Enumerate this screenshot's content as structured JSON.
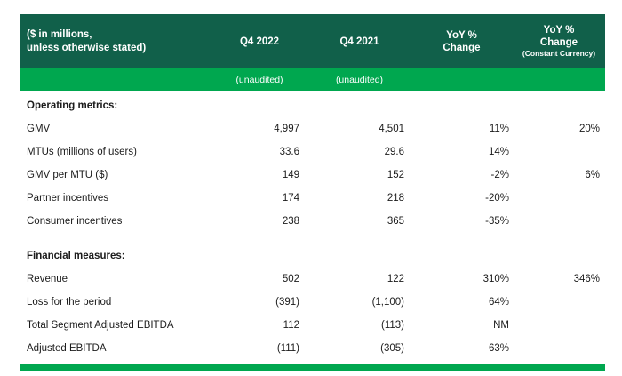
{
  "colors": {
    "header_bg": "#11604A",
    "accent_green": "#00A74F",
    "header_text": "#ffffff",
    "body_text": "#1b1b1b"
  },
  "table": {
    "header": {
      "label_line1": "($ in millions,",
      "label_line2": "unless otherwise stated)",
      "col_q4_2022": "Q4 2022",
      "col_q4_2021": "Q4 2021",
      "col_yoy_line1": "YoY %",
      "col_yoy_line2": "Change",
      "col_yoy_cc_line1": "YoY %",
      "col_yoy_cc_line2": "Change",
      "col_yoy_cc_sub": "(Constant Currency)"
    },
    "subheader": {
      "q4_2022": "(unaudited)",
      "q4_2021": "(unaudited)"
    },
    "sections": [
      {
        "title": "Operating metrics:",
        "rows": [
          {
            "label": "GMV",
            "q4_2022": "4,997",
            "q4_2021": "4,501",
            "yoy": "11%",
            "yoy_cc": "20%"
          },
          {
            "label": "MTUs (millions of users)",
            "q4_2022": "33.6",
            "q4_2021": "29.6",
            "yoy": "14%",
            "yoy_cc": ""
          },
          {
            "label": "GMV per MTU ($)",
            "q4_2022": "149",
            "q4_2021": "152",
            "yoy": "-2%",
            "yoy_cc": "6%"
          },
          {
            "label": "Partner incentives",
            "q4_2022": "174",
            "q4_2021": "218",
            "yoy": "-20%",
            "yoy_cc": ""
          },
          {
            "label": "Consumer incentives",
            "q4_2022": "238",
            "q4_2021": "365",
            "yoy": "-35%",
            "yoy_cc": ""
          }
        ]
      },
      {
        "title": "Financial measures:",
        "rows": [
          {
            "label": "Revenue",
            "q4_2022": "502",
            "q4_2021": "122",
            "yoy": "310%",
            "yoy_cc": "346%"
          },
          {
            "label": "Loss for the period",
            "q4_2022": "(391)",
            "q4_2021": "(1,100)",
            "yoy": "64%",
            "yoy_cc": ""
          },
          {
            "label": "Total Segment Adjusted EBITDA",
            "q4_2022": "112",
            "q4_2021": "(113)",
            "yoy": "NM",
            "yoy_cc": ""
          },
          {
            "label": "Adjusted EBITDA",
            "q4_2022": "(111)",
            "q4_2021": "(305)",
            "yoy": "63%",
            "yoy_cc": ""
          }
        ]
      }
    ]
  }
}
